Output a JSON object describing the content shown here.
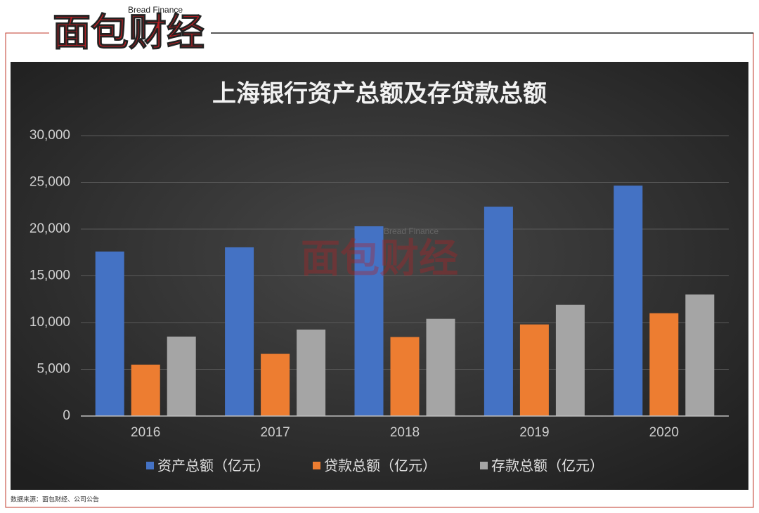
{
  "logo": {
    "text": "面包财经",
    "subtitle": "Bread Finance"
  },
  "source": "数据来源：面包财经、公司公告",
  "chart_data": {
    "type": "bar",
    "title": "上海银行资产总额及存贷款总额",
    "categories": [
      "2016",
      "2017",
      "2018",
      "2019",
      "2020"
    ],
    "series": [
      {
        "name": "资产总额（亿元）",
        "color": "#4472c4",
        "values": [
          17600,
          18050,
          20300,
          22400,
          24650
        ]
      },
      {
        "name": "贷款总额（亿元）",
        "color": "#ed7d31",
        "values": [
          5500,
          6650,
          8450,
          9800,
          11000
        ]
      },
      {
        "name": "存款总额（亿元）",
        "color": "#a5a5a5",
        "values": [
          8500,
          9250,
          10400,
          11900,
          13000
        ]
      }
    ],
    "ylim": [
      0,
      30000
    ],
    "yticks": [
      0,
      {
        "value": 5000,
        "label": "5,000"
      },
      {
        "value": 10000,
        "label": "10,000"
      },
      {
        "value": 15000,
        "label": "15,000"
      },
      {
        "value": 20000,
        "label": "20,000"
      },
      {
        "value": 25000,
        "label": "25,000"
      },
      {
        "value": 30000,
        "label": "30,000"
      }
    ],
    "grid": true,
    "legend": "bottom"
  }
}
